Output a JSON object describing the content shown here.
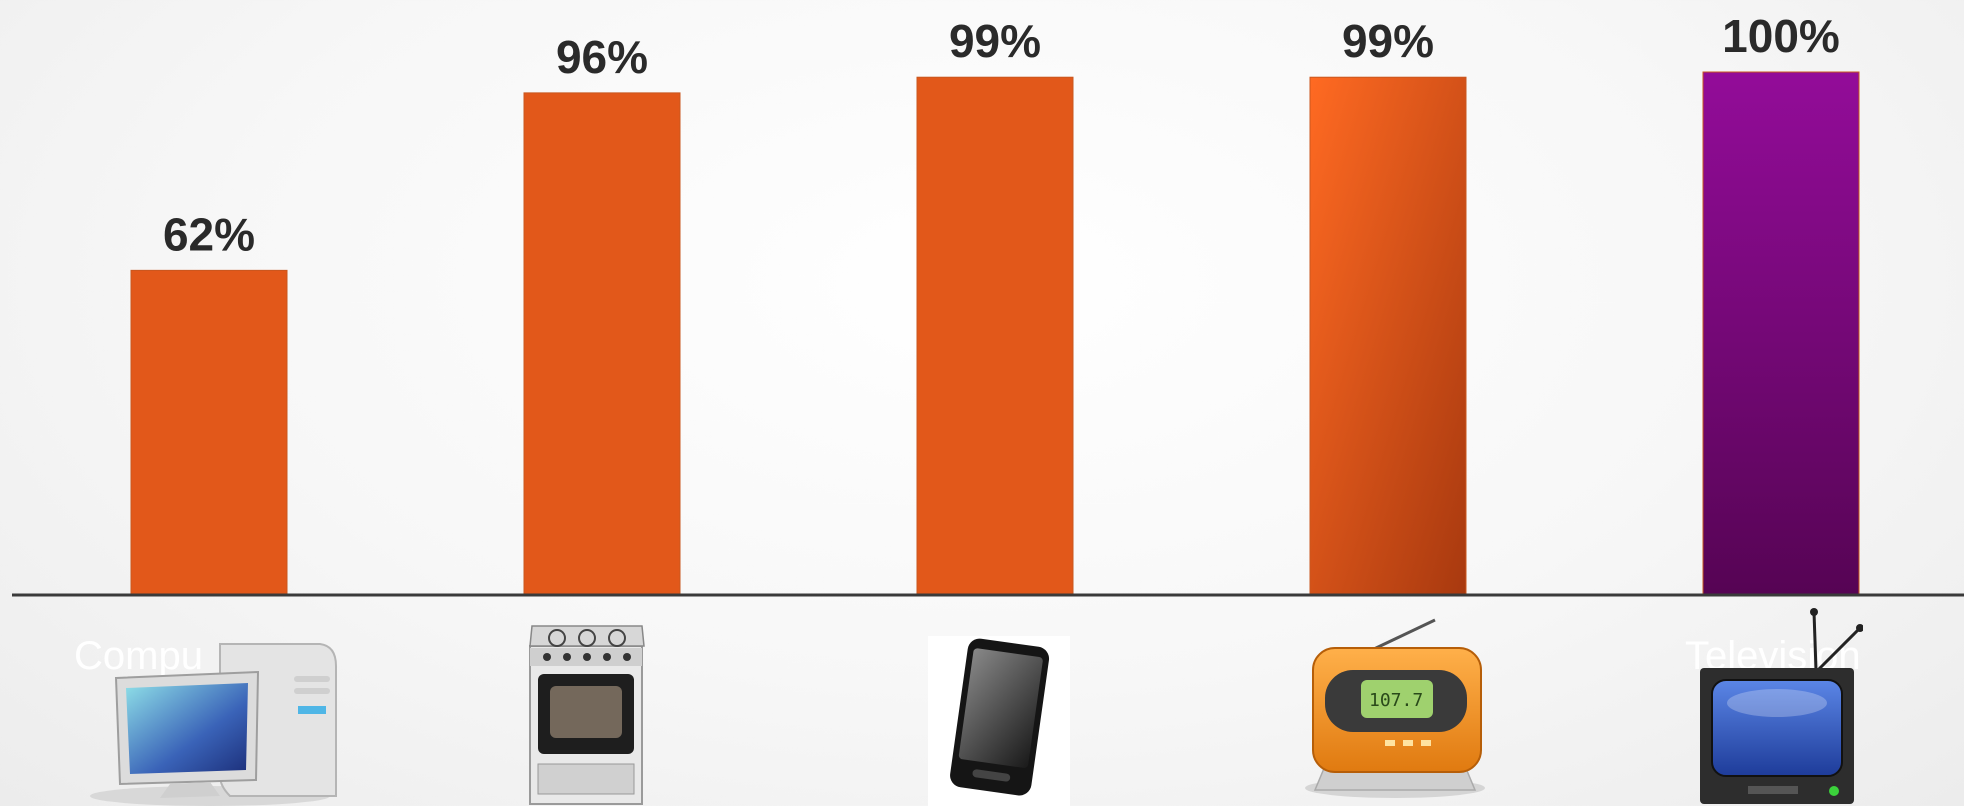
{
  "chart_data": {
    "type": "bar",
    "title": "",
    "xlabel": "",
    "ylabel": "",
    "ylim": [
      0,
      100
    ],
    "grid": false,
    "legend": "none",
    "categories": [
      "Computer",
      "Stove",
      "Cell phone",
      "Radio",
      "Television"
    ],
    "visible_category_labels": [
      "Compu",
      "",
      "",
      "",
      "Television"
    ],
    "values": [
      62,
      96,
      99,
      99,
      100
    ],
    "data_labels": [
      "62%",
      "96%",
      "99%",
      "99%",
      "100%"
    ],
    "bar_colors": [
      "#e2581a",
      "#e2581a",
      "#e2581a",
      "#e8601c",
      "#7a0a80"
    ],
    "icons": [
      "computer-icon",
      "stove-icon",
      "cell-phone-icon",
      "radio-icon",
      "television-icon"
    ],
    "label_color": "#2a2a2a",
    "axis_color": "#3a3a3a"
  }
}
